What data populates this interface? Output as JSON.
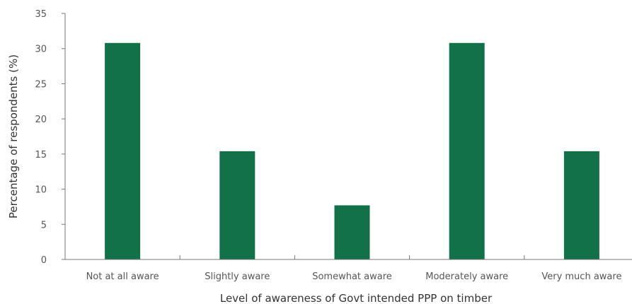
{
  "chart_data": {
    "type": "bar",
    "categories": [
      "Not at all aware",
      "Slightly aware",
      "Somewhat aware",
      "Moderately aware",
      "Very much aware"
    ],
    "values": [
      30.8,
      15.4,
      7.7,
      30.8,
      15.4
    ],
    "title": "",
    "xlabel": "Level of awareness of Govt intended PPP on timber",
    "ylabel": "Percentage of respondents (%)",
    "ylim": [
      0,
      35
    ],
    "yticks": [
      "0",
      "5",
      "10",
      "15",
      "20",
      "25",
      "30",
      "35"
    ],
    "grid": false,
    "legend": "none",
    "bar_color": "#13714a",
    "axis_color": "#777777"
  }
}
